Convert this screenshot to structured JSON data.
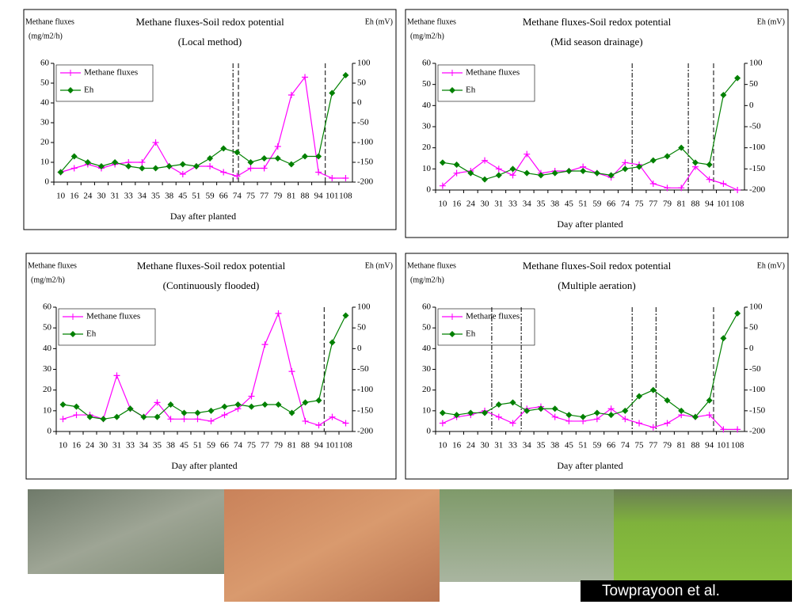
{
  "chart_data": [
    {
      "type": "line",
      "title": "Methane fluxes-Soil redox potential",
      "subtitle": "(Local method)",
      "y_label": "Methane fluxes",
      "y_unit": "(mg/m2/h)",
      "y2_label": "Eh (mV)",
      "x_label": "Day after planted",
      "categories": [
        "10",
        "16",
        "24",
        "30",
        "31",
        "33",
        "34",
        "35",
        "38",
        "45",
        "51",
        "59",
        "66",
        "74",
        "75",
        "77",
        "79",
        "81",
        "88",
        "94",
        "101",
        "108"
      ],
      "ylim": [
        0,
        60
      ],
      "yticks": [
        0,
        10,
        20,
        30,
        40,
        50,
        60
      ],
      "y2lim": [
        -200,
        100
      ],
      "y2ticks": [
        -200,
        -150,
        -100,
        -50,
        0,
        50,
        100
      ],
      "legend": "upper left",
      "series": [
        {
          "name": "Methane fluxes",
          "color": "#ff00ff",
          "values": [
            5,
            7,
            9,
            7,
            9,
            10,
            10,
            20,
            8,
            4,
            8,
            8,
            5,
            3,
            7,
            7,
            18,
            44,
            53,
            5,
            2,
            2
          ]
        },
        {
          "name": "Eh",
          "color": "#008000",
          "axis": "y2",
          "values": [
            -175,
            -135,
            -150,
            -160,
            -150,
            -160,
            -165,
            -165,
            -160,
            -155,
            -160,
            -140,
            -115,
            -125,
            -150,
            -140,
            -140,
            -155,
            -135,
            -135,
            25,
            70
          ]
        }
      ]
    },
    {
      "type": "line",
      "title": "Methane fluxes-Soil redox potential",
      "subtitle": "(Mid season drainage)",
      "y_label": "Methane fluxes",
      "y_unit": "(mg/m2/h)",
      "y2_label": "Eh (mV)",
      "x_label": "Day after planted",
      "categories": [
        "10",
        "16",
        "24",
        "30",
        "31",
        "33",
        "34",
        "35",
        "38",
        "45",
        "51",
        "59",
        "66",
        "74",
        "75",
        "77",
        "79",
        "81",
        "88",
        "94",
        "101",
        "108"
      ],
      "ylim": [
        0,
        60
      ],
      "yticks": [
        0,
        10,
        20,
        30,
        40,
        50,
        60
      ],
      "y2lim": [
        -200,
        100
      ],
      "y2ticks": [
        -200,
        -150,
        -100,
        -50,
        0,
        50,
        100
      ],
      "legend": "upper left",
      "series": [
        {
          "name": "Methane fluxes",
          "color": "#ff00ff",
          "values": [
            2,
            8,
            9,
            14,
            10,
            7,
            17,
            8,
            9,
            9,
            11,
            8,
            6,
            13,
            12,
            3,
            1,
            1,
            11,
            5,
            3,
            0
          ]
        },
        {
          "name": "Eh",
          "color": "#008000",
          "axis": "y2",
          "values": [
            -135,
            -140,
            -160,
            -175,
            -165,
            -150,
            -160,
            -165,
            -160,
            -155,
            -155,
            -160,
            -165,
            -150,
            -145,
            -130,
            -120,
            -100,
            -135,
            -140,
            25,
            65
          ]
        }
      ]
    },
    {
      "type": "line",
      "title": "Methane fluxes-Soil redox potential",
      "subtitle": "(Continuously flooded)",
      "y_label": "Methane fluxes",
      "y_unit": "(mg/m2/h)",
      "y2_label": "Eh (mV)",
      "x_label": "Day after planted",
      "categories": [
        "10",
        "16",
        "24",
        "30",
        "31",
        "33",
        "34",
        "35",
        "38",
        "45",
        "51",
        "59",
        "66",
        "74",
        "75",
        "77",
        "79",
        "81",
        "88",
        "94",
        "101",
        "108"
      ],
      "ylim": [
        0,
        60
      ],
      "yticks": [
        0,
        10,
        20,
        30,
        40,
        50,
        60
      ],
      "y2lim": [
        -200,
        100
      ],
      "y2ticks": [
        -200,
        -150,
        -100,
        -50,
        0,
        50,
        100
      ],
      "legend": "upper left",
      "series": [
        {
          "name": "Methane fluxes",
          "color": "#ff00ff",
          "values": [
            6,
            8,
            8,
            6,
            27,
            11,
            7,
            14,
            6,
            6,
            6,
            5,
            8,
            11,
            17,
            42,
            57,
            29,
            5,
            3,
            7,
            4
          ]
        },
        {
          "name": "Eh",
          "color": "#008000",
          "axis": "y2",
          "values": [
            -135,
            -140,
            -165,
            -170,
            -165,
            -145,
            -165,
            -165,
            -135,
            -155,
            -155,
            -150,
            -140,
            -135,
            -140,
            -135,
            -135,
            -155,
            -130,
            -125,
            15,
            80
          ]
        }
      ]
    },
    {
      "type": "line",
      "title": "Methane fluxes-Soil redox potential",
      "subtitle": "(Multiple aeration)",
      "y_label": "Methane fluxes",
      "y_unit": "(mg/m2/h)",
      "y2_label": "Eh (mV)",
      "x_label": "Day after planted",
      "categories": [
        "10",
        "16",
        "24",
        "30",
        "31",
        "33",
        "34",
        "35",
        "38",
        "45",
        "51",
        "59",
        "66",
        "74",
        "75",
        "77",
        "79",
        "81",
        "88",
        "94",
        "101",
        "108"
      ],
      "ylim": [
        0,
        60
      ],
      "yticks": [
        0,
        10,
        20,
        30,
        40,
        50,
        60
      ],
      "y2lim": [
        -200,
        100
      ],
      "y2ticks": [
        -200,
        -150,
        -100,
        -50,
        0,
        50,
        100
      ],
      "legend": "upper left",
      "series": [
        {
          "name": "Methane fluxes",
          "color": "#ff00ff",
          "values": [
            4,
            7,
            8,
            10,
            7,
            4,
            11,
            12,
            7,
            5,
            5,
            6,
            11,
            6,
            4,
            2,
            4,
            8,
            7,
            8,
            1,
            1
          ]
        },
        {
          "name": "Eh",
          "color": "#008000",
          "axis": "y2",
          "values": [
            -155,
            -160,
            -155,
            -155,
            -135,
            -130,
            -150,
            -145,
            -145,
            -160,
            -165,
            -155,
            -160,
            -150,
            -115,
            -100,
            -125,
            -150,
            -165,
            -125,
            25,
            85
          ]
        }
      ]
    }
  ],
  "credit": "Towprayoon et al."
}
